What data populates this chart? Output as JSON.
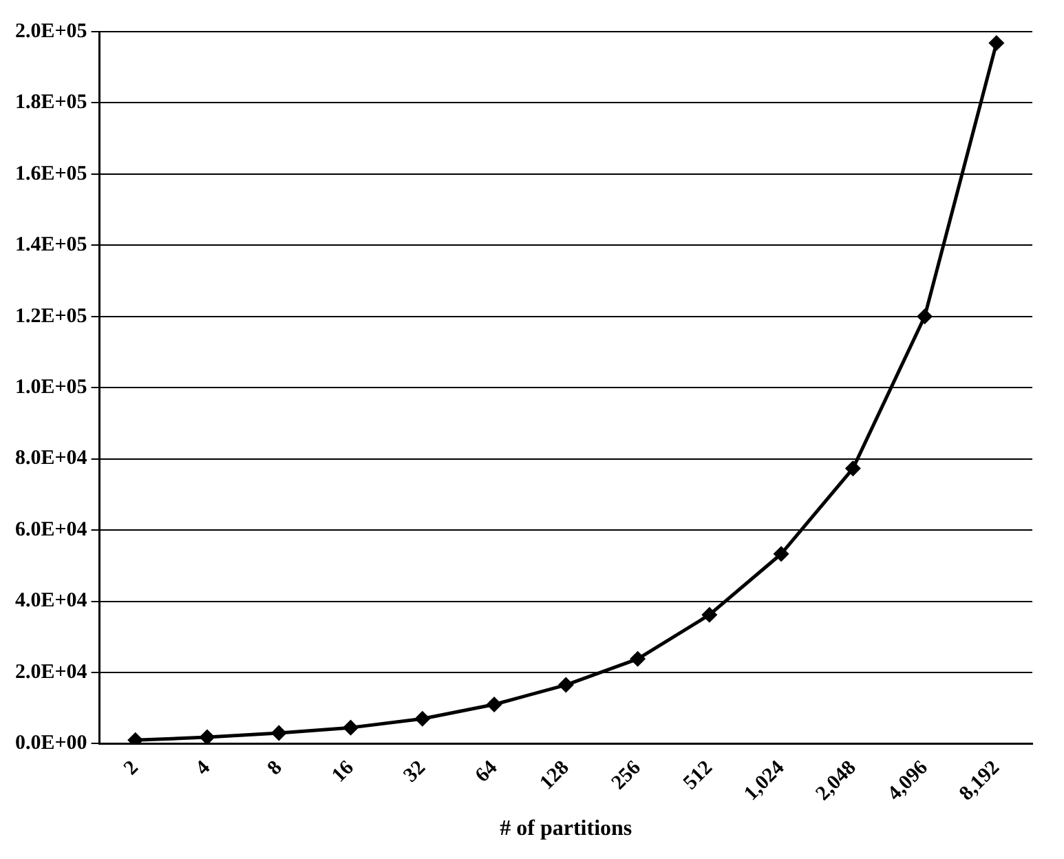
{
  "chart_data": {
    "type": "line",
    "xlabel": "# of partitions",
    "categories": [
      "2",
      "4",
      "8",
      "16",
      "32",
      "64",
      "128",
      "256",
      "512",
      "1,024",
      "2,048",
      "4,096",
      "8,192"
    ],
    "series": [
      {
        "color": "#000000",
        "values": [
          1000,
          1800,
          3000,
          4500,
          7000,
          11000,
          16500,
          23800,
          36200,
          53300,
          77300,
          120000,
          196800
        ]
      }
    ],
    "ylim": [
      0,
      200000
    ],
    "yticks": [
      {
        "value": 0,
        "label": "0.0E+00"
      },
      {
        "value": 20000,
        "label": "2.0E+04"
      },
      {
        "value": 40000,
        "label": "4.0E+04"
      },
      {
        "value": 60000,
        "label": "6.0E+04"
      },
      {
        "value": 80000,
        "label": "8.0E+04"
      },
      {
        "value": 100000,
        "label": "1.0E+05"
      },
      {
        "value": 120000,
        "label": "1.2E+05"
      },
      {
        "value": 140000,
        "label": "1.4E+05"
      },
      {
        "value": 160000,
        "label": "1.6E+05"
      },
      {
        "value": 180000,
        "label": "1.8E+05"
      },
      {
        "value": 200000,
        "label": "2.0E+05"
      }
    ],
    "grid": "y",
    "marker": "diamond",
    "line_style": "solid"
  }
}
